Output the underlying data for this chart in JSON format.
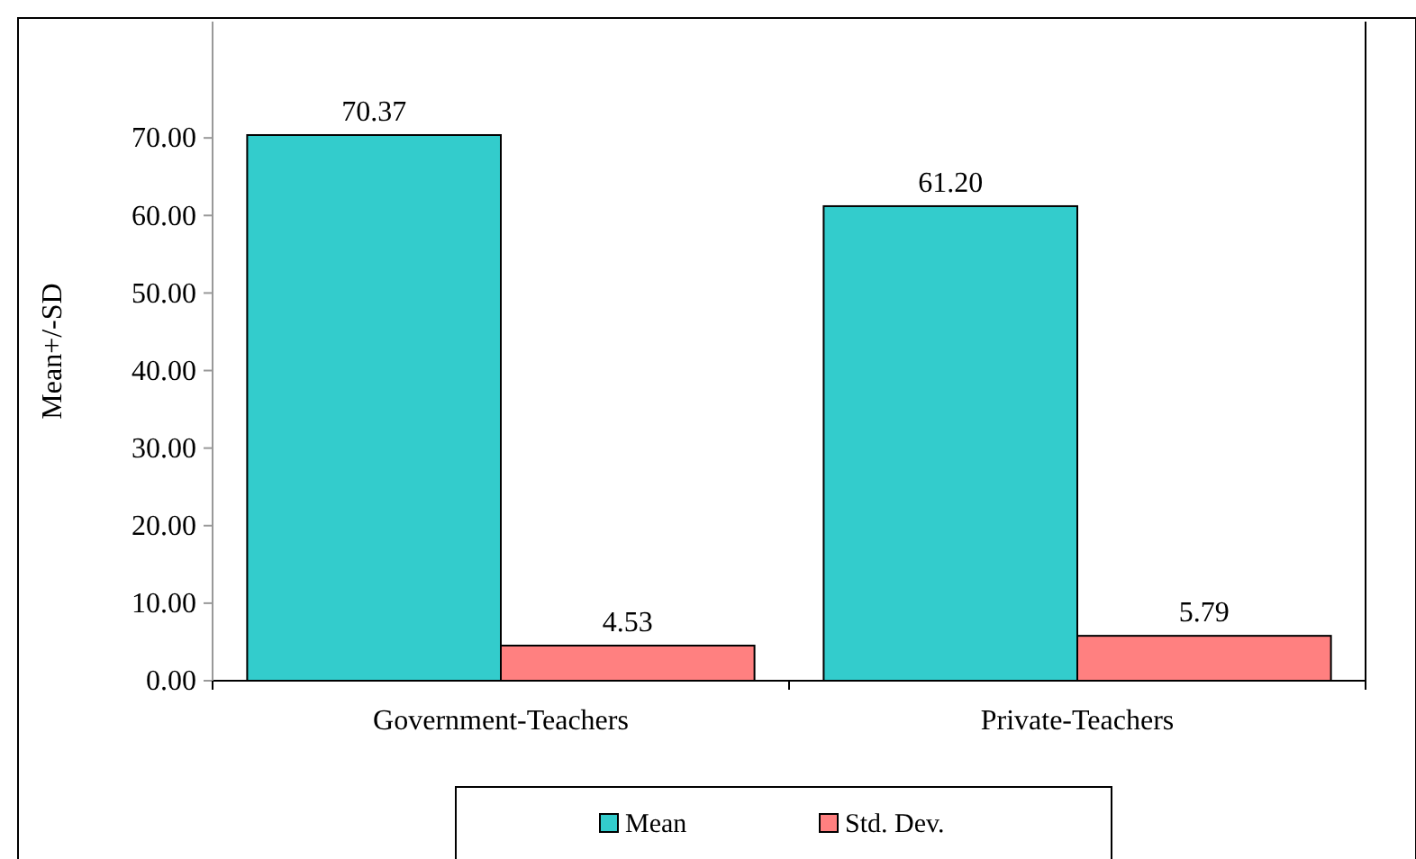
{
  "chart_data": {
    "type": "bar",
    "ylabel": "Mean+/-SD",
    "categories": [
      "Government-Teachers",
      "Private-Teachers"
    ],
    "series": [
      {
        "name": "Mean",
        "color": "#33cccc",
        "values": [
          70.37,
          61.2
        ],
        "value_labels": [
          "70.37",
          "61.20"
        ]
      },
      {
        "name": "Std. Dev.",
        "color": "#ff8080",
        "values": [
          4.53,
          5.79
        ],
        "value_labels": [
          "4.53",
          "5.79"
        ]
      }
    ],
    "ylim": [
      0,
      85
    ],
    "yticks": [
      {
        "value": 0,
        "label": "0.00"
      },
      {
        "value": 10,
        "label": "10.00"
      },
      {
        "value": 20,
        "label": "20.00"
      },
      {
        "value": 30,
        "label": "30.00"
      },
      {
        "value": 40,
        "label": "40.00"
      },
      {
        "value": 50,
        "label": "50.00"
      },
      {
        "value": 60,
        "label": "60.00"
      },
      {
        "value": 70,
        "label": "70.00"
      }
    ],
    "grid": false,
    "legend": "bottom"
  }
}
